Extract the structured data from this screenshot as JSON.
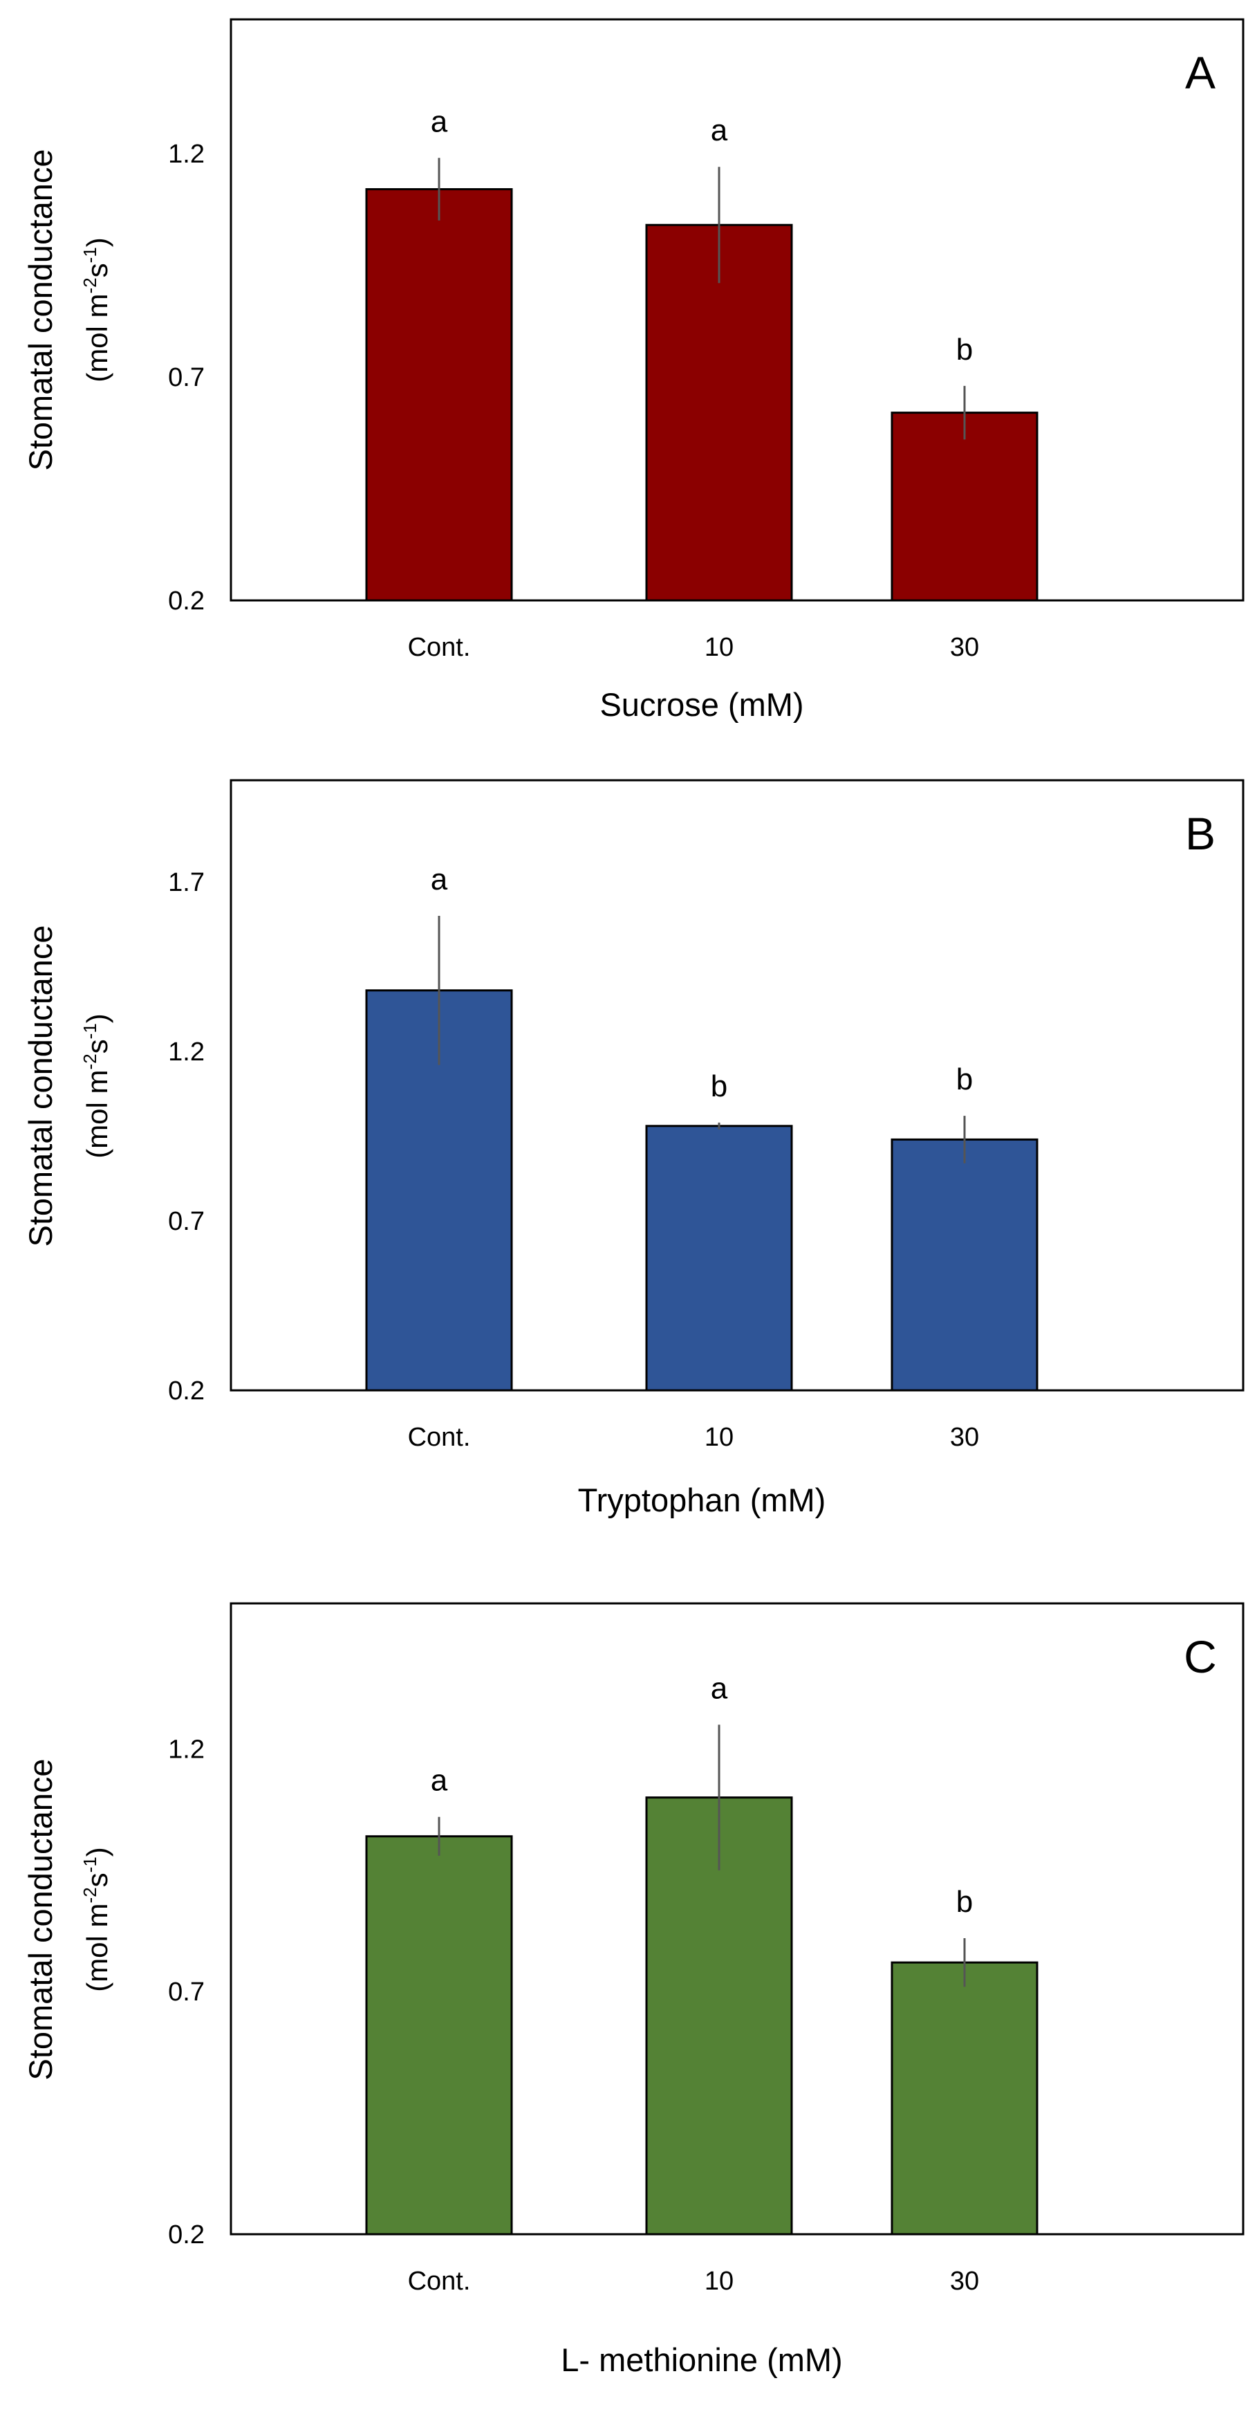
{
  "chart_data": [
    {
      "type": "bar",
      "panel_label": "A",
      "categories": [
        "Cont.",
        "10",
        "30"
      ],
      "values": [
        1.12,
        1.04,
        0.62
      ],
      "errors": [
        0.07,
        0.13,
        0.06
      ],
      "significance": [
        "a",
        "a",
        "b"
      ],
      "bar_color": "#8b0000",
      "xlabel": "Sucrose (mM)",
      "ylabel": {
        "main": "Stomatal conductance",
        "unit_pre": "(mol m",
        "unit_sup1": "-2",
        "unit_mid": "s",
        "unit_sup2": "-1",
        "unit_post": ")"
      },
      "ylim": [
        0.2,
        1.5
      ],
      "yticks": [
        "0.2",
        "0.7",
        "1.2"
      ],
      "legend": "none"
    },
    {
      "type": "bar",
      "panel_label": "B",
      "categories": [
        "Cont.",
        "10",
        "30"
      ],
      "values": [
        1.38,
        0.98,
        0.94
      ],
      "errors": [
        0.22,
        0.01,
        0.07
      ],
      "significance": [
        "a",
        "b",
        "b"
      ],
      "bar_color": "#2f5597",
      "xlabel": "Tryptophan (mM)",
      "ylabel": {
        "main": "Stomatal conductance",
        "unit_pre": "(mol m",
        "unit_sup1": "-2",
        "unit_mid": "s",
        "unit_sup2": "-1",
        "unit_post": ")"
      },
      "ylim": [
        0.2,
        2.0
      ],
      "yticks": [
        "0.2",
        "0.7",
        "1.2",
        "1.7"
      ],
      "legend": "none"
    },
    {
      "type": "bar",
      "panel_label": "C",
      "categories": [
        "Cont.",
        "10",
        "30"
      ],
      "values": [
        1.02,
        1.1,
        0.76
      ],
      "errors": [
        0.04,
        0.15,
        0.05
      ],
      "significance": [
        "a",
        "a",
        "b"
      ],
      "bar_color": "#548235",
      "xlabel": "L- methionine (mM)",
      "ylabel": {
        "main": "Stomatal conductance",
        "unit_pre": "(mol m",
        "unit_sup1": "-2",
        "unit_mid": "s",
        "unit_sup2": "-1",
        "unit_post": ")"
      },
      "ylim": [
        0.2,
        1.5
      ],
      "yticks": [
        "0.2",
        "0.7",
        "1.2"
      ],
      "legend": "none"
    }
  ]
}
